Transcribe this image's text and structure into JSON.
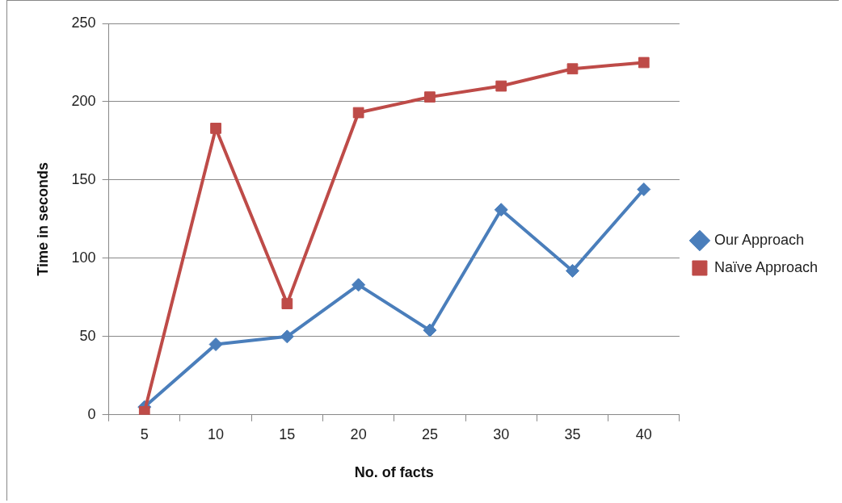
{
  "chart_data": {
    "type": "line",
    "xlabel": "No. of facts",
    "ylabel": "Time in seconds",
    "categories": [
      "5",
      "10",
      "15",
      "20",
      "25",
      "30",
      "35",
      "40"
    ],
    "series": [
      {
        "name": "Our Approach",
        "color": "#4a7ebb",
        "marker": "diamond",
        "values": [
          5,
          45,
          50,
          83,
          54,
          131,
          92,
          144
        ]
      },
      {
        "name": "Naïve Approach",
        "color": "#be4b48",
        "marker": "square",
        "values": [
          2,
          183,
          71,
          193,
          203,
          210,
          221,
          225
        ]
      }
    ],
    "ylim": [
      0,
      250
    ],
    "yticks": [
      0,
      50,
      100,
      150,
      200,
      250
    ],
    "grid": "y",
    "legend": "right"
  }
}
